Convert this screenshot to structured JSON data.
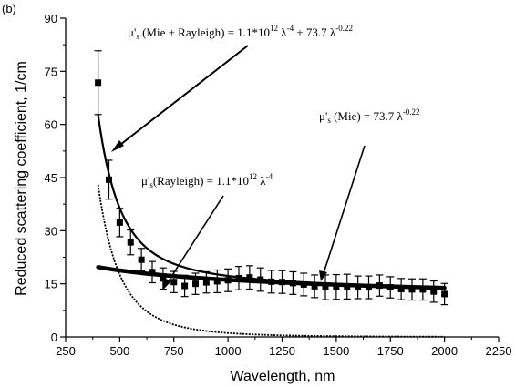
{
  "chart_data": {
    "type": "scatter",
    "panel_label": "(b)",
    "xlabel": "Wavelength, nm",
    "ylabel": "Reduced scattering coefficient, 1/cm",
    "xlim": [
      250,
      2250
    ],
    "ylim": [
      0,
      90
    ],
    "xticks": [
      250,
      500,
      750,
      1000,
      1250,
      1500,
      1750,
      2000,
      2250
    ],
    "yticks": [
      0,
      15,
      30,
      45,
      60,
      75,
      90
    ],
    "grid": false,
    "legend": "none",
    "series": [
      {
        "kind": "measured",
        "x": [
          400,
          450,
          500,
          550,
          600,
          650,
          700,
          750,
          800,
          850,
          900,
          950,
          1000,
          1050,
          1100,
          1150,
          1200,
          1250,
          1300,
          1350,
          1400,
          1450,
          1500,
          1550,
          1600,
          1650,
          1700,
          1750,
          1800,
          1850,
          1900,
          1950,
          2000
        ],
        "y": [
          71.8,
          44.4,
          32.3,
          26.7,
          21.8,
          18.3,
          16.5,
          15.5,
          14.4,
          15.0,
          15.4,
          15.7,
          16.0,
          16.6,
          16.8,
          16.2,
          15.6,
          15.5,
          15.2,
          14.8,
          14.3,
          14.0,
          14.1,
          14.2,
          14.0,
          14.0,
          14.5,
          14.0,
          13.5,
          13.4,
          13.4,
          12.8,
          12.1
        ],
        "error": [
          9.0,
          5.5,
          4.0,
          3.5,
          3.2,
          3.0,
          3.0,
          3.0,
          3.0,
          3.0,
          3.0,
          3.2,
          3.2,
          3.3,
          3.3,
          3.3,
          3.2,
          3.2,
          3.2,
          3.2,
          3.2,
          3.5,
          3.5,
          3.5,
          3.2,
          3.2,
          3.0,
          3.0,
          3.0,
          3.0,
          3.0,
          3.0,
          3.0
        ]
      },
      {
        "kind": "fit-mie-rayleigh",
        "formula": {
          "a": 1100000000000.0,
          "b": 73.7,
          "n": -4,
          "m": -0.22
        },
        "x_range": [
          400,
          2000
        ]
      },
      {
        "kind": "fit-mie",
        "formula": {
          "b": 73.7,
          "m": -0.22
        },
        "x_range": [
          400,
          2000
        ]
      },
      {
        "kind": "fit-rayleigh",
        "formula": {
          "a": 1100000000000.0,
          "n": -4
        },
        "x_range": [
          400,
          2000
        ]
      }
    ],
    "annotations": [
      {
        "id": "mie-rayleigh",
        "pre": "μ'",
        "sub": "s",
        "mid": " (Mie + Rayleigh) = 1.1*10",
        "sup1": "12",
        "mid2": " λ",
        "sup2": "-4",
        "mid3": " + 73.7 λ",
        "sup3": "-0.22"
      },
      {
        "id": "mie",
        "pre": "μ'",
        "sub": "s",
        "mid": " (Mie) = 73.7 λ",
        "sup1": "-0.22"
      },
      {
        "id": "rayleigh",
        "pre": "μ'",
        "sub": "s",
        "mid": "(Rayleigh) = 1.1*10",
        "sup1": "12",
        "mid2": " λ",
        "sup2": "-4"
      }
    ]
  }
}
